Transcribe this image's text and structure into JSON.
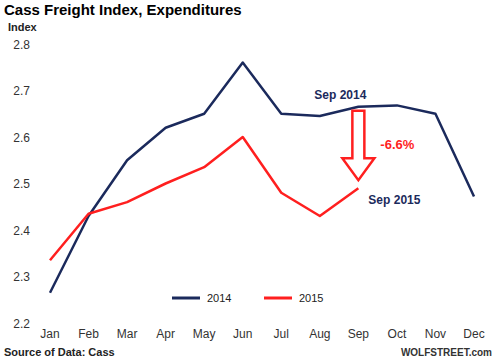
{
  "chart_data": {
    "type": "line",
    "title": "Cass Freight Index, Expenditures",
    "y_label": "Index",
    "categories": [
      "Jan",
      "Feb",
      "Mar",
      "Apr",
      "May",
      "Jun",
      "Jul",
      "Aug",
      "Sep",
      "Oct",
      "Nov",
      "Dec"
    ],
    "series": [
      {
        "name": "2014",
        "color": "#1b2a5c",
        "values": [
          2.265,
          2.43,
          2.55,
          2.62,
          2.65,
          2.76,
          2.65,
          2.645,
          2.665,
          2.668,
          2.65,
          2.472
        ]
      },
      {
        "name": "2015",
        "color": "#ff1f1f",
        "values": [
          2.335,
          2.435,
          2.46,
          2.5,
          2.535,
          2.6,
          2.48,
          2.43,
          2.49,
          null,
          null,
          null
        ]
      }
    ],
    "ylim": [
      2.2,
      2.8
    ],
    "yticks": [
      2.2,
      2.3,
      2.4,
      2.5,
      2.6,
      2.7,
      2.8
    ],
    "grid": false,
    "legend": "bottom",
    "annotations": [
      {
        "text": "Sep 2014"
      },
      {
        "text": "-6.6%"
      },
      {
        "text": "Sep 2015"
      }
    ],
    "source": "Source of Data: Cass",
    "credit": "WOLFSTREET.com"
  }
}
